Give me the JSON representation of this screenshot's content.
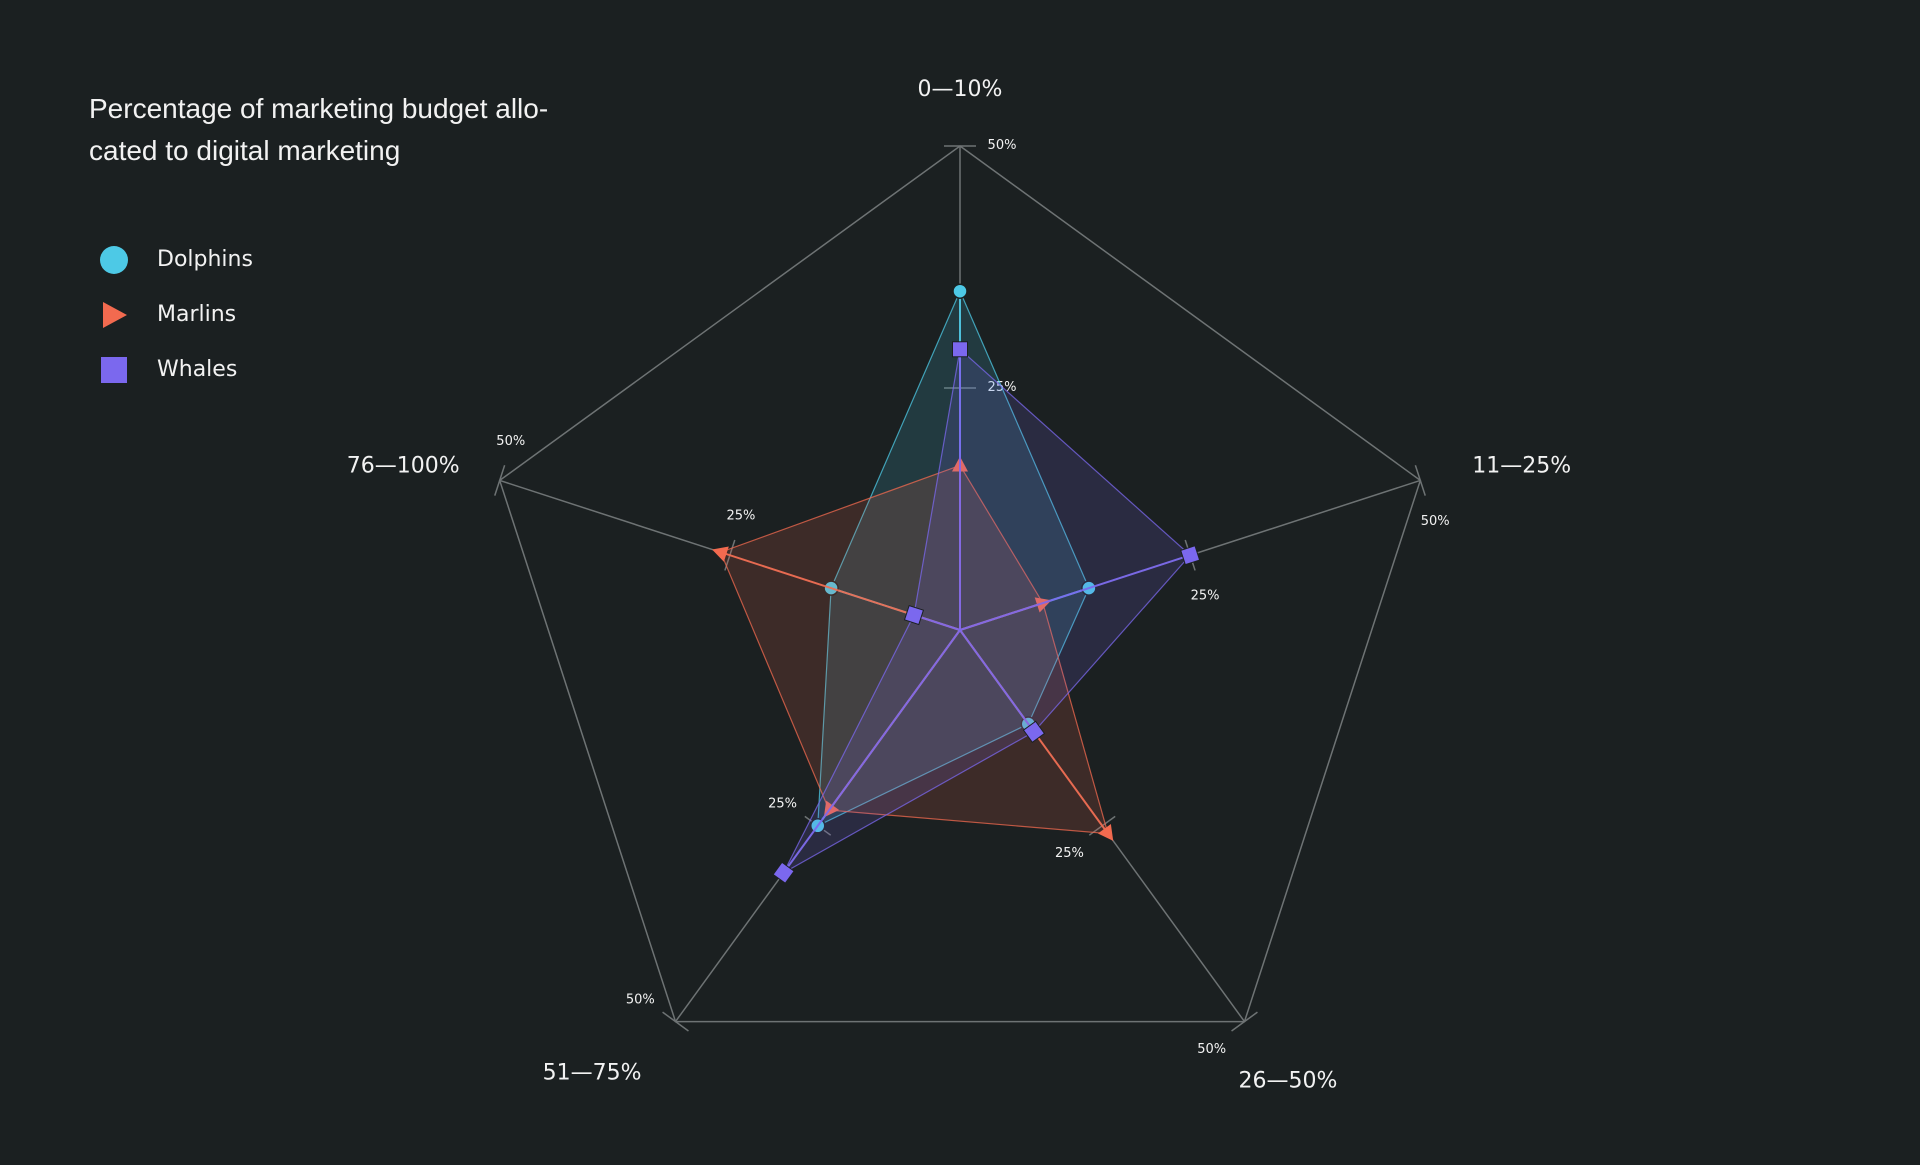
{
  "chart_data": {
    "type": "radar",
    "title": "Percentage of marketing budget allo-\ncated to digital marketing",
    "categories": [
      "0—10%",
      "11—25%",
      "26—50%",
      "51—75%",
      "76—100%"
    ],
    "rlim": [
      0,
      50
    ],
    "ticks": [
      25,
      50
    ],
    "tick_labels": [
      "25%",
      "50%"
    ],
    "grid": true,
    "legend_position": "top-left",
    "series": [
      {
        "name": "Dolphins",
        "marker": "circle",
        "color": "#4dc9e6",
        "values": [
          35,
          14,
          12,
          25,
          14
        ]
      },
      {
        "name": "Marlins",
        "marker": "triangle",
        "color": "#f26a4f",
        "values": [
          17,
          9,
          26,
          23,
          26
        ]
      },
      {
        "name": "Whales",
        "marker": "square",
        "color": "#7b68ee",
        "values": [
          29,
          25,
          13,
          31,
          5
        ]
      }
    ]
  }
}
